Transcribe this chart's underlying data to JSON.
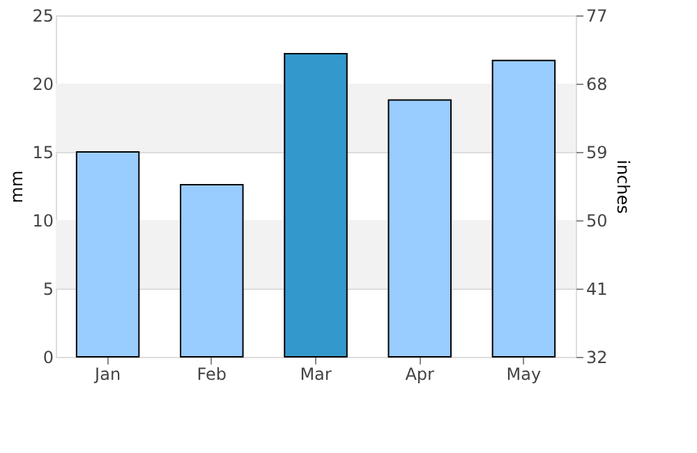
{
  "chart_data": {
    "type": "bar",
    "categories": [
      "Jan",
      "Feb",
      "Mar",
      "Apr",
      "May"
    ],
    "values": [
      15,
      12.6,
      22.2,
      18.8,
      21.7
    ],
    "colors": [
      "#99ccff",
      "#99ccff",
      "#3399cc",
      "#99ccff",
      "#99ccff"
    ],
    "ylabel": "mm",
    "y2label": "inches",
    "ylim": [
      0,
      25
    ],
    "yticks": [
      0,
      5,
      10,
      15,
      20,
      25
    ],
    "y2lim": [
      32,
      77
    ],
    "y2ticks": [
      32,
      41,
      50,
      59,
      68,
      77
    ],
    "bands": [
      {
        "axis": "y",
        "from": 5,
        "to": 10,
        "color": "#f2f2f2"
      },
      {
        "axis": "y",
        "from": 15,
        "to": 20,
        "color": "#f2f2f2"
      }
    ],
    "grid": "y",
    "legend": false
  }
}
